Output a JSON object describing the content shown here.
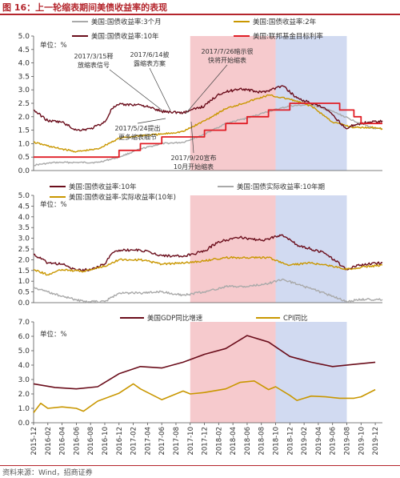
{
  "figure": {
    "title": "图 16：上一轮缩表期间美债收益率的表现",
    "source": "资料来源：Wind，招商证券"
  },
  "colors": {
    "brand_red": "#b4252c",
    "t10y": "#6b0e1c",
    "t3m": "#a9a9a9",
    "t2y": "#c99700",
    "ffr": "#e01e26",
    "real": "#a9a9a9",
    "gdp": "#6b0e1c",
    "cpi": "#c99700",
    "shade_tightening": "#f4c1c4",
    "shade_qt": "#c9d3ee",
    "grid": "#d9d9d9"
  },
  "chart_data": [
    {
      "type": "line",
      "unit_label": "单位：%",
      "ylim": [
        0,
        5
      ],
      "yticks": [
        "0.0",
        "0.5",
        "1.0",
        "1.5",
        "2.0",
        "2.5",
        "3.0",
        "3.5",
        "4.0",
        "4.5",
        "5.0"
      ],
      "shaded_ranges": [
        {
          "from": "2017-10",
          "to": "2018-10",
          "color": "pink"
        },
        {
          "from": "2018-10",
          "to": "2019-08",
          "color": "lightblue"
        }
      ],
      "legend": [
        "美国:国债收益率:3个月",
        "美国:国债收益率:2年",
        "美国:国债收益率:10年",
        "美国:联邦基金目标利率"
      ],
      "series": [
        {
          "name": "美国:国债收益率:3个月",
          "x": [
            "2015-12",
            "2016-03",
            "2016-06",
            "2016-09",
            "2016-12",
            "2017-03",
            "2017-06",
            "2017-09",
            "2017-12",
            "2018-03",
            "2018-06",
            "2018-09",
            "2018-12",
            "2019-03",
            "2019-06",
            "2019-09",
            "2019-12",
            "2020-01"
          ],
          "values": [
            0.2,
            0.3,
            0.3,
            0.3,
            0.5,
            0.8,
            1.0,
            1.05,
            1.35,
            1.75,
            1.95,
            2.2,
            2.4,
            2.45,
            2.2,
            1.85,
            1.55,
            1.55
          ]
        },
        {
          "name": "美国:国债收益率:2年",
          "x": [
            "2015-12",
            "2016-03",
            "2016-06",
            "2016-09",
            "2016-12",
            "2017-03",
            "2017-06",
            "2017-09",
            "2017-12",
            "2018-03",
            "2018-06",
            "2018-09",
            "2018-12",
            "2019-03",
            "2019-06",
            "2019-09",
            "2019-12",
            "2020-01"
          ],
          "values": [
            1.05,
            0.85,
            0.7,
            0.8,
            1.2,
            1.3,
            1.35,
            1.45,
            1.85,
            2.3,
            2.55,
            2.8,
            2.65,
            2.4,
            1.8,
            1.6,
            1.6,
            1.55
          ]
        },
        {
          "name": "美国:国债收益率:10年",
          "x": [
            "2015-12",
            "2016-02",
            "2016-04",
            "2016-06",
            "2016-08",
            "2016-10",
            "2016-11",
            "2016-12",
            "2017-03",
            "2017-06",
            "2017-09",
            "2017-12",
            "2018-02",
            "2018-05",
            "2018-08",
            "2018-11",
            "2019-01",
            "2019-03",
            "2019-05",
            "2019-08",
            "2019-09",
            "2019-11",
            "2020-01"
          ],
          "values": [
            2.25,
            1.85,
            1.8,
            1.5,
            1.55,
            1.8,
            2.3,
            2.45,
            2.45,
            2.2,
            2.15,
            2.4,
            2.85,
            3.05,
            2.9,
            3.15,
            2.7,
            2.5,
            2.3,
            1.55,
            1.7,
            1.8,
            1.85
          ]
        },
        {
          "name": "美国:联邦基金目标利率",
          "step": true,
          "x": [
            "2015-12",
            "2016-12",
            "2017-03",
            "2017-06",
            "2017-12",
            "2018-03",
            "2018-06",
            "2018-09",
            "2018-12",
            "2019-07",
            "2019-09",
            "2019-10",
            "2020-01"
          ],
          "values": [
            0.5,
            0.75,
            1.0,
            1.25,
            1.5,
            1.75,
            2.0,
            2.25,
            2.5,
            2.25,
            2.0,
            1.75,
            1.75
          ]
        }
      ],
      "annotations": [
        {
          "text": "2017/3/15释\n放缩表信号",
          "date": "2017-03"
        },
        {
          "text": "2017/6/14披\n露缩表方案",
          "date": "2017-06"
        },
        {
          "text": "2017/7/26暗示很\n快将开始缩表",
          "date": "2017-07"
        },
        {
          "text": "2017/5/24提出\n更多缩表细节",
          "date": "2017-05"
        },
        {
          "text": "2017/9/20宣布\n10月开始缩表",
          "date": "2017-09"
        }
      ]
    },
    {
      "type": "line",
      "unit_label": "单位：%",
      "ylim": [
        0,
        5
      ],
      "yticks": [
        "0.0",
        "0.5",
        "1.0",
        "1.5",
        "2.0",
        "2.5",
        "3.0",
        "3.5",
        "4.0",
        "4.5",
        "5.0"
      ],
      "legend": [
        "美国:国债收益率:10年",
        "美国:国债实际收益率:10年期",
        "美国:国债收益率-实际收益率(10年)"
      ],
      "series": [
        {
          "name": "美国:国债收益率:10年",
          "x": [
            "2015-12",
            "2016-02",
            "2016-04",
            "2016-06",
            "2016-08",
            "2016-10",
            "2016-11",
            "2016-12",
            "2017-03",
            "2017-06",
            "2017-09",
            "2017-12",
            "2018-02",
            "2018-05",
            "2018-08",
            "2018-11",
            "2019-01",
            "2019-03",
            "2019-05",
            "2019-08",
            "2019-09",
            "2019-11",
            "2020-01"
          ],
          "values": [
            2.25,
            1.85,
            1.8,
            1.5,
            1.55,
            1.8,
            2.3,
            2.45,
            2.45,
            2.2,
            2.15,
            2.4,
            2.85,
            3.05,
            2.9,
            3.15,
            2.7,
            2.5,
            2.3,
            1.55,
            1.7,
            1.8,
            1.85
          ]
        },
        {
          "name": "美国:国债实际收益率:10年期",
          "x": [
            "2015-12",
            "2016-02",
            "2016-04",
            "2016-07",
            "2016-10",
            "2016-12",
            "2017-03",
            "2017-06",
            "2017-09",
            "2017-12",
            "2018-03",
            "2018-06",
            "2018-09",
            "2018-11",
            "2019-01",
            "2019-03",
            "2019-06",
            "2019-08",
            "2019-10",
            "2020-01"
          ],
          "values": [
            0.7,
            0.5,
            0.3,
            0.05,
            0.05,
            0.45,
            0.45,
            0.5,
            0.35,
            0.5,
            0.75,
            0.75,
            0.9,
            1.1,
            0.85,
            0.65,
            0.3,
            0.05,
            0.15,
            0.15
          ]
        },
        {
          "name": "美国:国债收益率-实际收益率(10年)",
          "x": [
            "2015-12",
            "2016-02",
            "2016-04",
            "2016-07",
            "2016-10",
            "2016-12",
            "2017-03",
            "2017-06",
            "2017-09",
            "2017-12",
            "2018-03",
            "2018-06",
            "2018-09",
            "2018-12",
            "2019-03",
            "2019-06",
            "2019-08",
            "2019-10",
            "2020-01"
          ],
          "values": [
            1.55,
            1.3,
            1.55,
            1.45,
            1.7,
            2.0,
            2.0,
            1.8,
            1.85,
            1.95,
            2.1,
            2.1,
            2.1,
            1.75,
            1.85,
            1.7,
            1.55,
            1.65,
            1.75
          ]
        }
      ]
    },
    {
      "type": "line",
      "unit_label": "单位：%",
      "ylim": [
        0,
        7
      ],
      "yticks": [
        "0.0",
        "1.0",
        "2.0",
        "3.0",
        "4.0",
        "5.0",
        "6.0",
        "7.0"
      ],
      "legend": [
        "美国GDP同比增速",
        "CPI同比"
      ],
      "series": [
        {
          "name": "美国GDP同比增速",
          "x": [
            "2015-12",
            "2016-03",
            "2016-06",
            "2016-09",
            "2016-12",
            "2017-03",
            "2017-06",
            "2017-09",
            "2017-12",
            "2018-03",
            "2018-06",
            "2018-09",
            "2018-12",
            "2019-03",
            "2019-06",
            "2019-09",
            "2019-12"
          ],
          "values": [
            2.7,
            2.45,
            2.35,
            2.5,
            3.4,
            3.9,
            3.8,
            4.2,
            4.75,
            5.15,
            6.05,
            5.6,
            4.6,
            4.2,
            3.9,
            4.05,
            4.2
          ]
        },
        {
          "name": "CPI同比",
          "x": [
            "2015-12",
            "2016-01",
            "2016-02",
            "2016-04",
            "2016-06",
            "2016-07",
            "2016-09",
            "2016-12",
            "2017-02",
            "2017-03",
            "2017-06",
            "2017-09",
            "2017-10",
            "2017-12",
            "2018-03",
            "2018-05",
            "2018-07",
            "2018-09",
            "2018-10",
            "2018-12",
            "2019-01",
            "2019-03",
            "2019-05",
            "2019-07",
            "2019-09",
            "2019-10",
            "2019-12"
          ],
          "values": [
            0.7,
            1.35,
            1.0,
            1.1,
            1.0,
            0.8,
            1.5,
            2.05,
            2.7,
            2.35,
            1.6,
            2.2,
            2.0,
            2.1,
            2.35,
            2.8,
            2.9,
            2.3,
            2.5,
            1.9,
            1.55,
            1.85,
            1.8,
            1.7,
            1.7,
            1.8,
            2.3
          ]
        }
      ]
    }
  ],
  "x_axis": {
    "start": "2015-12",
    "end": "2020-01",
    "tick_labels": [
      "2015-12",
      "2016-02",
      "2016-04",
      "2016-06",
      "2016-08",
      "2016-10",
      "2016-12",
      "2017-02",
      "2017-04",
      "2017-06",
      "2017-08",
      "2017-10",
      "2017-12",
      "2018-02",
      "2018-04",
      "2018-06",
      "2018-08",
      "2018-10",
      "2018-12",
      "2019-02",
      "2019-04",
      "2019-06",
      "2019-08",
      "2019-10",
      "2019-12"
    ]
  }
}
